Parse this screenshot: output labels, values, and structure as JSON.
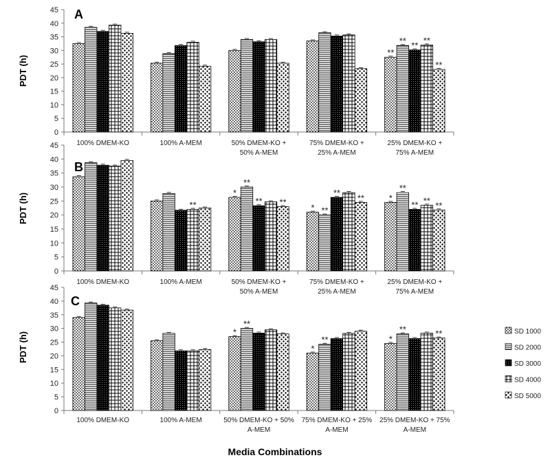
{
  "x_axis_title": "Media Combinations",
  "chart_data": [
    {
      "type": "bar",
      "panel_label": "A",
      "ylabel": "PDT (h)",
      "ylim": [
        0,
        45
      ],
      "yticks": [
        0,
        5,
        10,
        15,
        20,
        25,
        30,
        35,
        40,
        45
      ],
      "categories": [
        [
          "100% DMEM-KO"
        ],
        [
          "100% A-MEM"
        ],
        [
          "50% DMEM-KO +",
          "50% A-MEM"
        ],
        [
          "75% DMEM-KO +",
          "25% A-MEM"
        ],
        [
          "25% DMEM-KO +",
          "75% A-MEM"
        ]
      ],
      "series": [
        {
          "name": "SD 1000",
          "values": [
            32.5,
            25.3,
            30.0,
            33.5,
            27.5
          ]
        },
        {
          "name": "SD 2000",
          "values": [
            38.5,
            28.8,
            34.0,
            36.5,
            31.8
          ]
        },
        {
          "name": "SD 3000",
          "values": [
            37.0,
            31.8,
            33.2,
            35.3,
            30.2
          ]
        },
        {
          "name": "SD 4000",
          "values": [
            39.3,
            33.0,
            34.0,
            35.7,
            32.0
          ]
        },
        {
          "name": "SD 5000",
          "values": [
            36.3,
            24.2,
            25.3,
            23.3,
            23.0
          ]
        }
      ],
      "significance": [
        [
          "",
          "",
          "",
          "",
          "**"
        ],
        [
          "",
          "",
          "",
          "",
          "**"
        ],
        [
          "",
          "",
          "",
          "",
          "**"
        ],
        [
          "",
          "",
          "",
          "",
          "**"
        ],
        [
          "",
          "",
          "",
          "",
          "**"
        ]
      ]
    },
    {
      "type": "bar",
      "panel_label": "B",
      "ylabel": "PDT (h)",
      "ylim": [
        0,
        45
      ],
      "yticks": [
        0,
        5,
        10,
        15,
        20,
        25,
        30,
        35,
        40,
        45
      ],
      "categories": [
        [
          "100% DMEM-KO"
        ],
        [
          "100% A-MEM"
        ],
        [
          "50% DMEM-KO +",
          "50% A-MEM"
        ],
        [
          "75% DMEM-KO +",
          "25% A-MEM"
        ],
        [
          "25% DMEM-KO +",
          "75% A-MEM"
        ]
      ],
      "series": [
        {
          "name": "SD 1000",
          "values": [
            33.7,
            25.0,
            26.3,
            21.0,
            24.5
          ]
        },
        {
          "name": "SD 2000",
          "values": [
            38.7,
            27.7,
            30.0,
            20.0,
            28.0
          ]
        },
        {
          "name": "SD 3000",
          "values": [
            37.8,
            21.7,
            23.3,
            26.3,
            22.0
          ]
        },
        {
          "name": "SD 4000",
          "values": [
            37.5,
            22.0,
            24.7,
            28.0,
            23.5
          ]
        },
        {
          "name": "SD 5000",
          "values": [
            39.5,
            22.5,
            23.0,
            24.5,
            21.8
          ]
        }
      ],
      "significance": [
        [
          "",
          "",
          "*",
          "*",
          "*"
        ],
        [
          "",
          "",
          "**",
          "**",
          "**"
        ],
        [
          "",
          "",
          "**",
          "**",
          "**"
        ],
        [
          "",
          "**",
          "",
          "",
          "**"
        ],
        [
          "",
          "",
          "**",
          "**",
          "**"
        ]
      ]
    },
    {
      "type": "bar",
      "panel_label": "C",
      "ylabel": "PDT (h)",
      "ylim": [
        0,
        45
      ],
      "yticks": [
        0,
        5,
        10,
        15,
        20,
        25,
        30,
        35,
        40,
        45
      ],
      "categories": [
        [
          "100% DMEM-KO"
        ],
        [
          "100% A-MEM"
        ],
        [
          "50% DMEM-KO + 50%",
          "A-MEM"
        ],
        [
          "75% DMEM-KO + 25%",
          "A-MEM"
        ],
        [
          "25% DMEM-KO + 75%",
          "A-MEM"
        ]
      ],
      "series": [
        {
          "name": "SD 1000",
          "values": [
            34.0,
            25.5,
            27.0,
            21.0,
            24.5
          ]
        },
        {
          "name": "SD 2000",
          "values": [
            39.3,
            28.2,
            30.0,
            24.2,
            28.0
          ]
        },
        {
          "name": "SD 3000",
          "values": [
            38.5,
            21.8,
            28.3,
            26.3,
            26.3
          ]
        },
        {
          "name": "SD 4000",
          "values": [
            37.5,
            21.8,
            29.5,
            28.2,
            28.3
          ]
        },
        {
          "name": "SD 5000",
          "values": [
            36.7,
            22.3,
            28.0,
            29.0,
            26.5
          ]
        }
      ],
      "significance": [
        [
          "",
          "",
          "*",
          "*",
          "*"
        ],
        [
          "",
          "",
          "**",
          "**",
          "**"
        ],
        [
          "",
          "",
          "",
          "",
          ""
        ],
        [
          "",
          "",
          "",
          "",
          ""
        ],
        [
          "",
          "",
          "",
          "",
          "**"
        ]
      ]
    }
  ],
  "legend": [
    "SD 1000",
    "SD 2000",
    "SD 3000",
    "SD 4000",
    "SD 5000"
  ]
}
